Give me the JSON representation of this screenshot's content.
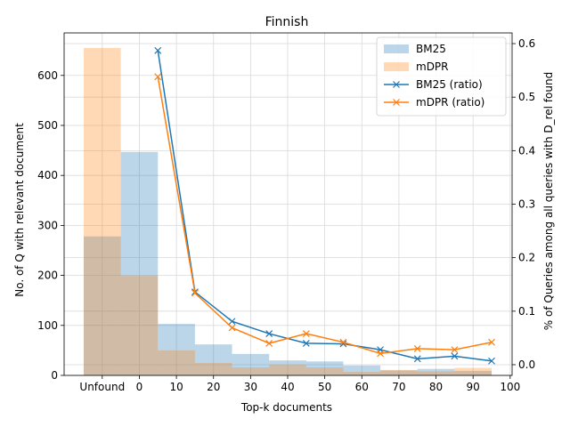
{
  "chart_data": {
    "type": "bar+line",
    "title": "Finnish",
    "xlabel": "Top-k documents",
    "ylabel_left": "No. of Q with relevant document",
    "ylabel_right": "% of Queries among all queries with D_rel found",
    "categories": [
      "Unfound",
      "0-10",
      "10-20",
      "20-30",
      "30-40",
      "40-50",
      "50-60",
      "60-70",
      "70-80",
      "80-90",
      "90-100"
    ],
    "x_tick_labels": [
      "Unfound",
      "0",
      "10",
      "20",
      "30",
      "40",
      "50",
      "60",
      "70",
      "80",
      "90",
      "100"
    ],
    "ylim_left": [
      0,
      685
    ],
    "yticks_left": [
      0,
      100,
      200,
      300,
      400,
      500,
      600
    ],
    "ylim_right": [
      -0.02,
      0.62
    ],
    "yticks_right": [
      0.0,
      0.1,
      0.2,
      0.3,
      0.4,
      0.5,
      0.6
    ],
    "yticks_right_labels": [
      "0.0",
      "0.1",
      "0.2",
      "0.3",
      "0.4",
      "0.5",
      "0.6"
    ],
    "bars": [
      {
        "name": "BM25",
        "color": "#1f77b4",
        "alpha": 0.3,
        "values": [
          278,
          447,
          103,
          62,
          43,
          30,
          28,
          20,
          10,
          13,
          9
        ]
      },
      {
        "name": "mDPR",
        "color": "#ff7f0e",
        "alpha": 0.3,
        "values": [
          655,
          199,
          50,
          25,
          16,
          21,
          16,
          7,
          11,
          8,
          15
        ]
      }
    ],
    "lines": [
      {
        "name": "BM25 (ratio)",
        "color": "#1f77b4",
        "x": [
          5,
          15,
          25,
          35,
          45,
          55,
          65,
          75,
          85,
          95
        ],
        "values": [
          0.587,
          0.136,
          0.081,
          0.058,
          0.04,
          0.039,
          0.028,
          0.011,
          0.016,
          0.007
        ]
      },
      {
        "name": "mDPR (ratio)",
        "color": "#ff7f0e",
        "x": [
          5,
          15,
          25,
          35,
          45,
          55,
          65,
          75,
          85,
          95
        ],
        "values": [
          0.538,
          0.134,
          0.069,
          0.04,
          0.058,
          0.042,
          0.021,
          0.03,
          0.028,
          0.042
        ]
      }
    ],
    "grid": true,
    "legend_position": "top-right"
  }
}
